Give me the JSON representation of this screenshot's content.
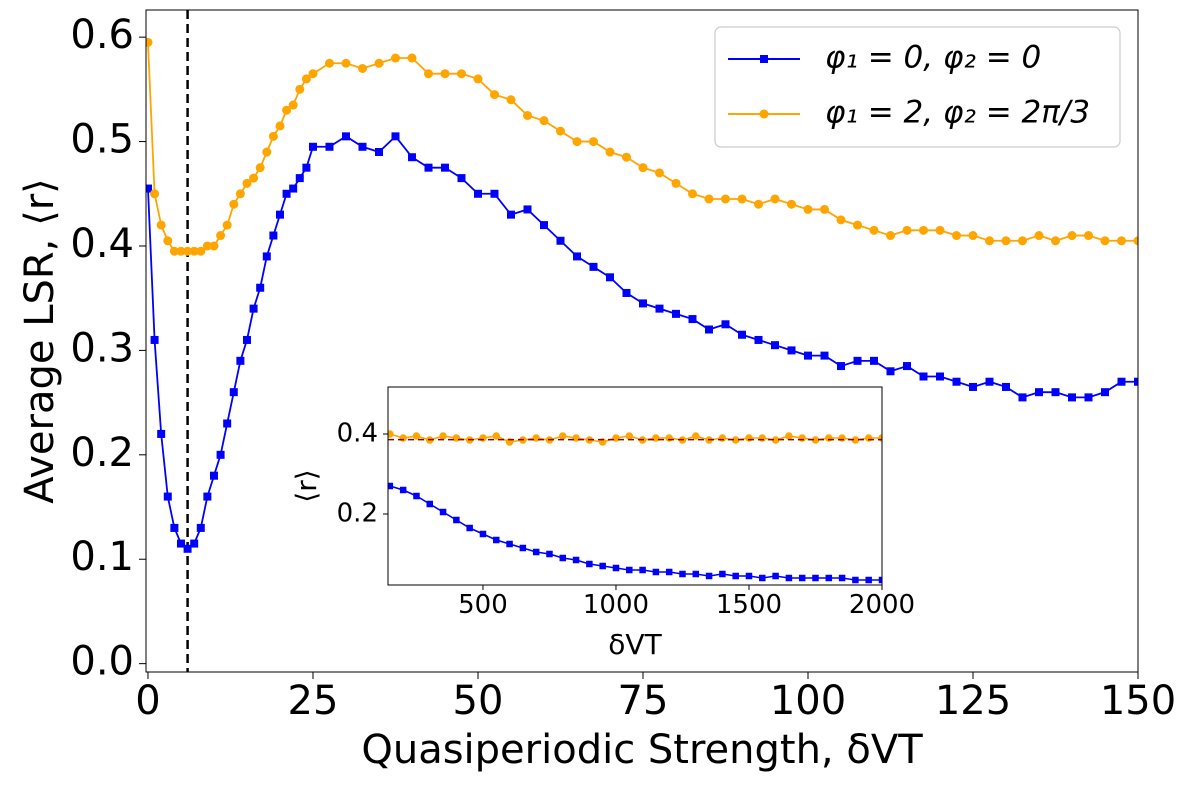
{
  "chart_data": [
    {
      "type": "line",
      "xlabel": "Quasiperiodic Strength, δVT",
      "ylabel": "Average LSR, ⟨r⟩",
      "x": [
        0,
        1,
        2,
        3,
        4,
        5,
        6,
        7,
        8,
        9,
        10,
        11,
        12,
        13,
        14,
        15,
        16,
        17,
        18,
        19,
        20,
        21,
        22,
        23,
        24,
        25,
        27.5,
        30,
        32.5,
        35,
        37.5,
        40,
        42.5,
        45,
        47.5,
        50,
        52.5,
        55,
        57.5,
        60,
        62.5,
        65,
        67.5,
        70,
        72.5,
        75,
        77.5,
        80,
        82.5,
        85,
        87.5,
        90,
        92.5,
        95,
        97.5,
        100,
        102.5,
        105,
        107.5,
        110,
        112.5,
        115,
        117.5,
        120,
        122.5,
        125,
        127.5,
        130,
        132.5,
        135,
        137.5,
        140,
        142.5,
        145,
        147.5,
        150
      ],
      "series": [
        {
          "name": "φ₁ = 0, φ₂ = 0",
          "color": "#0000ff",
          "marker": "square",
          "values": [
            0.455,
            0.31,
            0.22,
            0.16,
            0.13,
            0.115,
            0.11,
            0.115,
            0.13,
            0.16,
            0.18,
            0.2,
            0.23,
            0.26,
            0.29,
            0.31,
            0.34,
            0.36,
            0.39,
            0.41,
            0.43,
            0.45,
            0.455,
            0.465,
            0.475,
            0.495,
            0.495,
            0.505,
            0.495,
            0.49,
            0.505,
            0.485,
            0.475,
            0.475,
            0.465,
            0.45,
            0.45,
            0.43,
            0.435,
            0.42,
            0.405,
            0.39,
            0.38,
            0.37,
            0.355,
            0.345,
            0.34,
            0.335,
            0.33,
            0.32,
            0.325,
            0.315,
            0.31,
            0.305,
            0.3,
            0.295,
            0.295,
            0.285,
            0.29,
            0.29,
            0.28,
            0.285,
            0.275,
            0.275,
            0.27,
            0.265,
            0.27,
            0.265,
            0.255,
            0.26,
            0.26,
            0.255,
            0.255,
            0.26,
            0.27,
            0.27
          ]
        },
        {
          "name": "φ₁ = 2, φ₂ = 2π/3",
          "color": "#ffa500",
          "marker": "circle",
          "values": [
            0.595,
            0.45,
            0.42,
            0.405,
            0.395,
            0.395,
            0.395,
            0.395,
            0.395,
            0.4,
            0.4,
            0.41,
            0.42,
            0.44,
            0.45,
            0.46,
            0.465,
            0.475,
            0.49,
            0.505,
            0.515,
            0.53,
            0.535,
            0.55,
            0.56,
            0.565,
            0.575,
            0.575,
            0.57,
            0.575,
            0.58,
            0.58,
            0.565,
            0.565,
            0.565,
            0.56,
            0.545,
            0.54,
            0.525,
            0.52,
            0.51,
            0.5,
            0.5,
            0.49,
            0.485,
            0.475,
            0.47,
            0.46,
            0.45,
            0.445,
            0.445,
            0.445,
            0.44,
            0.445,
            0.44,
            0.435,
            0.435,
            0.425,
            0.42,
            0.415,
            0.41,
            0.415,
            0.415,
            0.415,
            0.41,
            0.41,
            0.405,
            0.405,
            0.405,
            0.41,
            0.405,
            0.41,
            0.41,
            0.405,
            0.405,
            0.405
          ]
        }
      ],
      "xlim": [
        -0.3,
        150
      ],
      "ylim": [
        -0.008,
        0.626
      ],
      "xticks": [
        0,
        25,
        50,
        75,
        100,
        125,
        150
      ],
      "yticks": [
        {
          "value": 0,
          "label": "0.0"
        },
        0.1,
        0.2,
        0.3,
        0.4,
        0.5,
        0.6
      ],
      "vline": 6,
      "legend": "upper right"
    },
    {
      "type": "line",
      "xlabel": "δVT",
      "ylabel": "⟨r⟩",
      "x": [
        150,
        200,
        250,
        300,
        350,
        400,
        450,
        500,
        550,
        600,
        650,
        700,
        750,
        800,
        850,
        900,
        950,
        1000,
        1050,
        1100,
        1150,
        1200,
        1250,
        1300,
        1350,
        1400,
        1450,
        1500,
        1550,
        1600,
        1650,
        1700,
        1750,
        1800,
        1850,
        1900,
        1950,
        2000
      ],
      "series": [
        {
          "name": "φ₁ = 0, φ₂ = 0",
          "color": "#0000ff",
          "marker": "square",
          "values": [
            0.27,
            0.26,
            0.245,
            0.225,
            0.205,
            0.185,
            0.165,
            0.15,
            0.135,
            0.125,
            0.115,
            0.105,
            0.1,
            0.09,
            0.085,
            0.075,
            0.07,
            0.065,
            0.06,
            0.06,
            0.055,
            0.055,
            0.05,
            0.05,
            0.045,
            0.05,
            0.045,
            0.045,
            0.04,
            0.045,
            0.04,
            0.04,
            0.04,
            0.04,
            0.04,
            0.035,
            0.035,
            0.035
          ]
        },
        {
          "name": "φ₁ = 2, φ₂ = 2π/3",
          "color": "#ffa500",
          "marker": "circle",
          "values": [
            0.4,
            0.39,
            0.395,
            0.385,
            0.395,
            0.39,
            0.385,
            0.39,
            0.395,
            0.38,
            0.385,
            0.39,
            0.385,
            0.395,
            0.39,
            0.385,
            0.38,
            0.39,
            0.395,
            0.385,
            0.39,
            0.39,
            0.385,
            0.395,
            0.385,
            0.39,
            0.385,
            0.39,
            0.39,
            0.385,
            0.395,
            0.39,
            0.385,
            0.39,
            0.39,
            0.385,
            0.39,
            0.39
          ]
        }
      ],
      "xlim": [
        143,
        2000
      ],
      "ylim": [
        0.0225,
        0.5175
      ],
      "xticks": [
        500,
        1000,
        1500,
        2000
      ],
      "yticks": [
        0.2,
        0.4
      ],
      "hline": 0.386
    }
  ]
}
